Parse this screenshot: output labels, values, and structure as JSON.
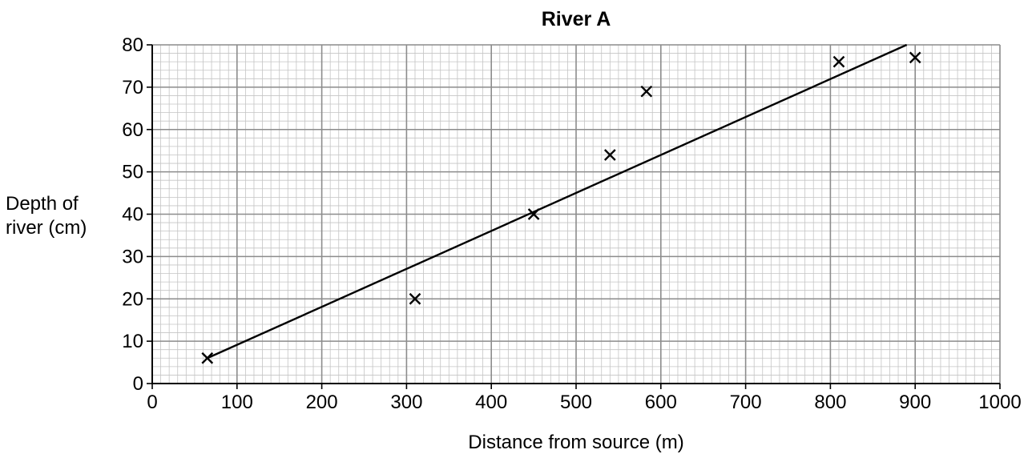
{
  "chart_data": {
    "type": "scatter",
    "title": "River A",
    "xlabel": "Distance from source (m)",
    "ylabel_lines": [
      "Depth of",
      "river (cm)"
    ],
    "xlim": [
      0,
      1000
    ],
    "ylim": [
      0,
      80
    ],
    "x_major_step": 100,
    "y_major_step": 10,
    "x_minor_step": 10,
    "y_minor_step": 2,
    "grid": true,
    "x_tick_labels": [
      "0",
      "100",
      "200",
      "300",
      "400",
      "500",
      "600",
      "700",
      "800",
      "900",
      "1000"
    ],
    "y_tick_labels": [
      "0",
      "10",
      "20",
      "30",
      "40",
      "50",
      "60",
      "70",
      "80"
    ],
    "marker": "x",
    "points": [
      {
        "x": 65,
        "y": 6
      },
      {
        "x": 310,
        "y": 20
      },
      {
        "x": 450,
        "y": 40
      },
      {
        "x": 540,
        "y": 54
      },
      {
        "x": 583,
        "y": 69
      },
      {
        "x": 810,
        "y": 76
      },
      {
        "x": 900,
        "y": 77
      }
    ],
    "best_fit_line": {
      "x1": 65,
      "y1": 6,
      "x2": 890,
      "y2": 80
    },
    "colors": {
      "major_grid": "#8c8c8c",
      "minor_grid": "#c4c4c4",
      "ink": "#000000"
    }
  }
}
